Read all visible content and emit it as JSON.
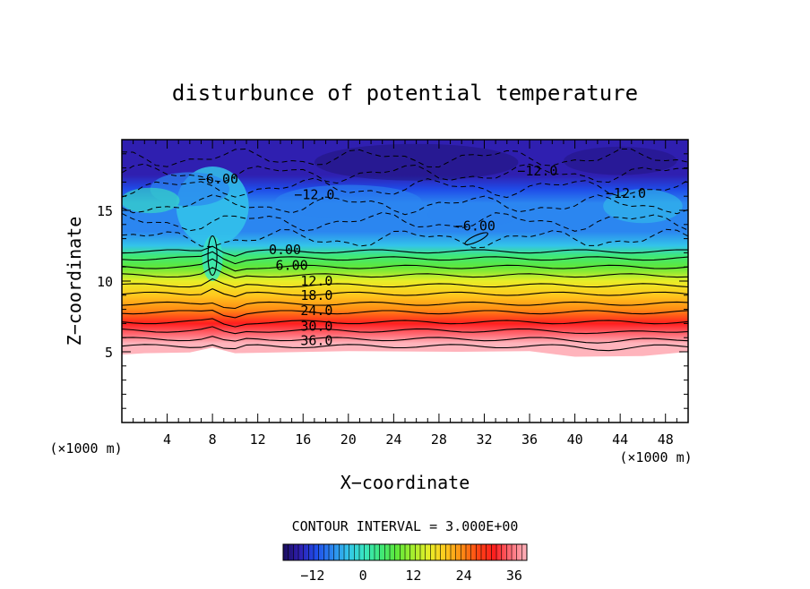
{
  "chart_data": {
    "type": "heatmap",
    "title": "disturbunce of potential temperature",
    "xlabel": "X−coordinate",
    "ylabel": "Z−coordinate",
    "x_unit_left": "(×1000 m)",
    "x_unit_right": "(×1000 m)",
    "xlim": [
      0,
      50
    ],
    "ylim": [
      0,
      20
    ],
    "x_ticks": [
      4,
      8,
      12,
      16,
      20,
      24,
      28,
      32,
      36,
      40,
      44,
      48
    ],
    "y_ticks": [
      5,
      10,
      15
    ],
    "contour_interval_text": "CONTOUR INTERVAL = 3.000E+00",
    "contour_labels": [
      "−6.00",
      "−12.0",
      "−12.0",
      "−12.0",
      "−6.00",
      "0.00",
      "6.00",
      "12.0",
      "18.0",
      "24.0",
      "30.0",
      "36.0"
    ],
    "surface_height": 5,
    "colorbar": {
      "ticks": [
        -12,
        0,
        12,
        24,
        36
      ],
      "range": [
        -19,
        39
      ]
    },
    "profile": [
      {
        "z": 5.0,
        "value": 42
      },
      {
        "z": 5.6,
        "value": 38
      },
      {
        "z": 6.2,
        "value": 34
      },
      {
        "z": 7.0,
        "value": 30
      },
      {
        "z": 8.0,
        "value": 24
      },
      {
        "z": 9.0,
        "value": 18
      },
      {
        "z": 10.0,
        "value": 14
      },
      {
        "z": 11.0,
        "value": 8
      },
      {
        "z": 11.8,
        "value": 3
      },
      {
        "z": 12.5,
        "value": -2
      },
      {
        "z": 13.5,
        "value": -5
      },
      {
        "z": 14.5,
        "value": -6
      },
      {
        "z": 15.5,
        "value": -7
      },
      {
        "z": 16.5,
        "value": -11
      },
      {
        "z": 17.5,
        "value": -12
      },
      {
        "z": 18.5,
        "value": -13
      },
      {
        "z": 20.0,
        "value": -14
      }
    ],
    "colors": {
      "scale": [
        "#1a0d5c",
        "#2f1fb0",
        "#1f4be8",
        "#2b86f0",
        "#33c4ea",
        "#38e6c0",
        "#3fe87a",
        "#5fe83a",
        "#a6ee2e",
        "#e8ee28",
        "#ffc81e",
        "#ff8c14",
        "#ff4514",
        "#ff1e1e",
        "#ff6e78",
        "#ffb4bc"
      ]
    }
  }
}
